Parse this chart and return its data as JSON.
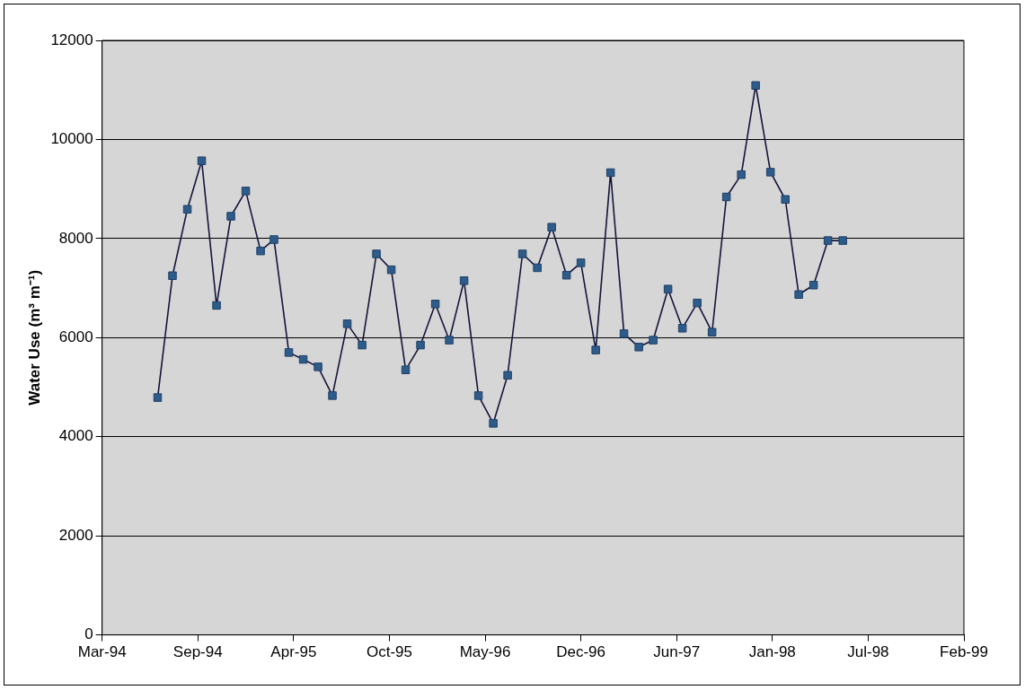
{
  "chart_data": {
    "type": "line",
    "ylabel": "Water Use (m³ m⁻¹)",
    "x": [
      "1994-07",
      "1994-08",
      "1994-09",
      "1994-10",
      "1994-11",
      "1994-12",
      "1995-01",
      "1995-02",
      "1995-03",
      "1995-04",
      "1995-05",
      "1995-06",
      "1995-07",
      "1995-08",
      "1995-09",
      "1995-10",
      "1995-11",
      "1995-12",
      "1996-01",
      "1996-02",
      "1996-03",
      "1996-04",
      "1996-05",
      "1996-06",
      "1996-07",
      "1996-08",
      "1996-09",
      "1996-10",
      "1996-11",
      "1996-12",
      "1997-01",
      "1997-02",
      "1997-03",
      "1997-04",
      "1997-05",
      "1997-06",
      "1997-07",
      "1997-08",
      "1997-09",
      "1997-10",
      "1997-11",
      "1997-12",
      "1998-01",
      "1998-02",
      "1998-03",
      "1998-04",
      "1998-05",
      "1998-06"
    ],
    "series": [
      {
        "color": "#2e5c8a",
        "values": [
          4790,
          7250,
          8590,
          9570,
          6650,
          8450,
          8960,
          7750,
          7980,
          5700,
          5560,
          5410,
          4830,
          6280,
          5850,
          7690,
          7370,
          5350,
          5850,
          6680,
          5950,
          7150,
          4830,
          4270,
          5240,
          7690,
          7410,
          8230,
          7260,
          7510,
          5750,
          9330,
          6080,
          5810,
          5950,
          6980,
          6190,
          6700,
          6110,
          8840,
          9290,
          11090,
          9340,
          8790,
          6870,
          7060,
          7960,
          7960
        ]
      }
    ],
    "xlim": [
      "1994-03-07",
      "1999-02-09"
    ],
    "xticks": [
      {
        "value": "1994-03-07",
        "label": "Mar-94"
      },
      {
        "value": "1994-09-23",
        "label": "Sep-94"
      },
      {
        "value": "1995-04-11",
        "label": "Apr-95"
      },
      {
        "value": "1995-10-28",
        "label": "Oct-95"
      },
      {
        "value": "1996-05-15",
        "label": "May-96"
      },
      {
        "value": "1996-12-01",
        "label": "Dec-96"
      },
      {
        "value": "1997-06-19",
        "label": "Jun-97"
      },
      {
        "value": "1998-01-05",
        "label": "Jan-98"
      },
      {
        "value": "1998-07-24",
        "label": "Jul-98"
      },
      {
        "value": "1999-02-09",
        "label": "Feb-99"
      }
    ],
    "ylim": [
      0,
      12000
    ],
    "yticks": [
      0,
      2000,
      4000,
      6000,
      8000,
      10000,
      12000
    ],
    "grid": "y",
    "legend": false,
    "marker": "square",
    "line_style": "solid"
  }
}
